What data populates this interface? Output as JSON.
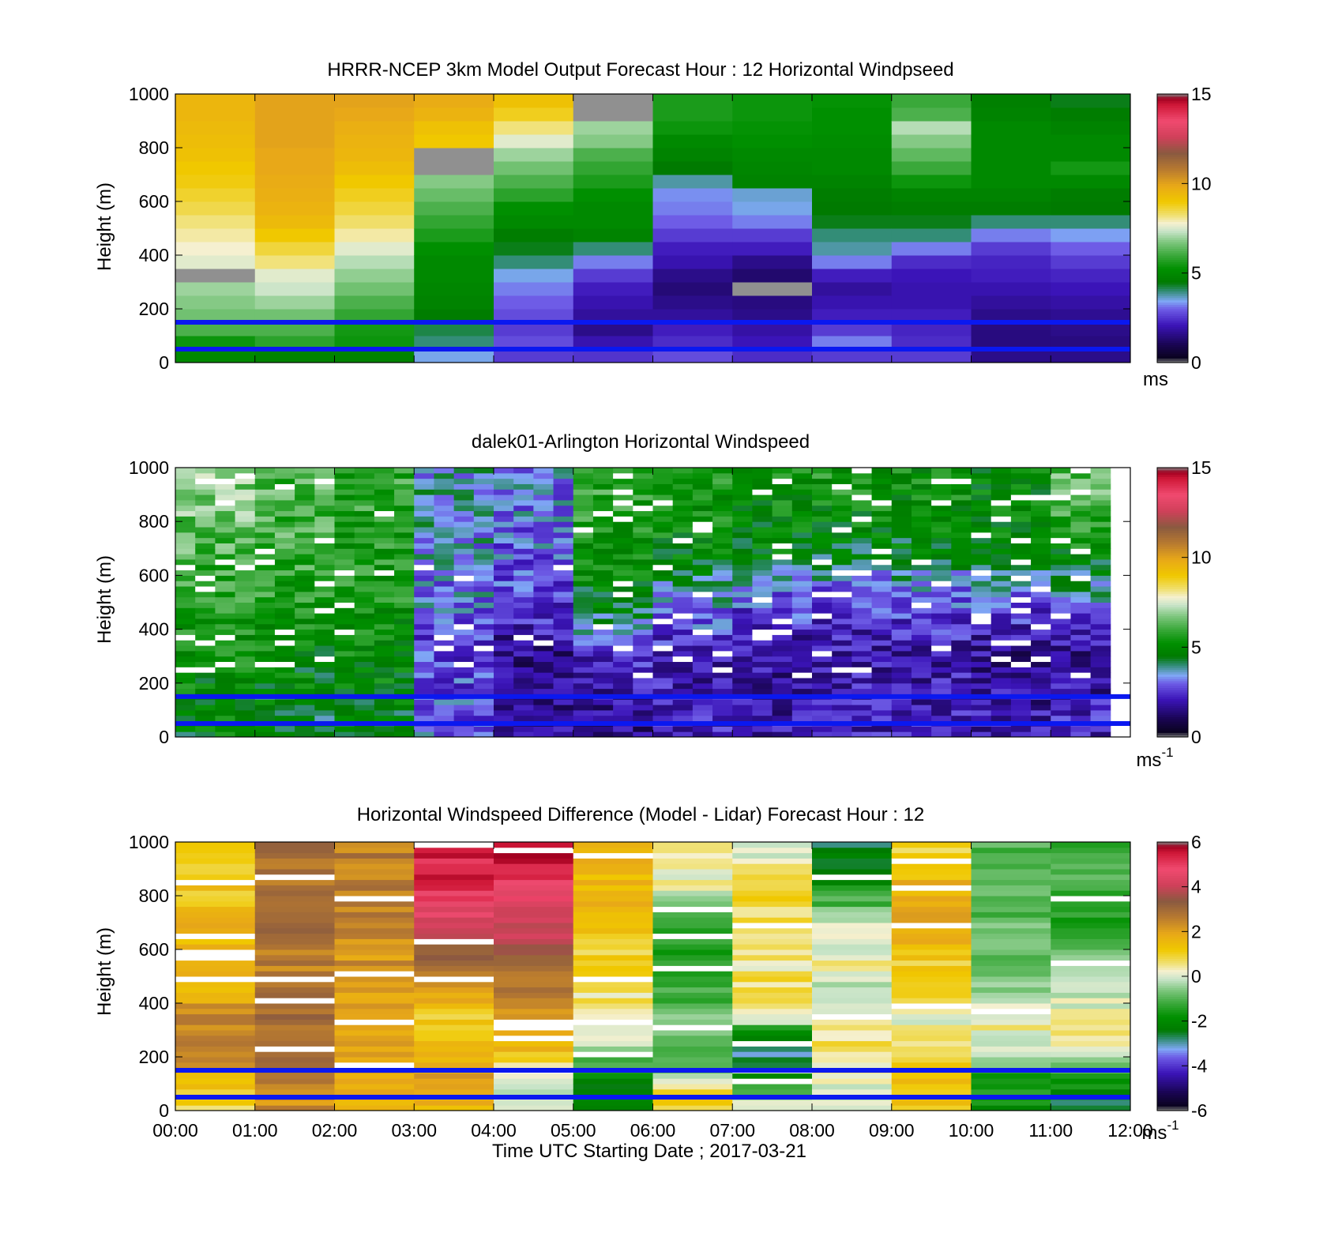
{
  "chart_data": [
    {
      "type": "heatmap",
      "title": "HRRR-NCEP 3km Model Output   Forecast Hour : 12 Horizontal Windpseed",
      "xlabel": "",
      "ylabel": "Height (m)",
      "xlim_hours": [
        0,
        12
      ],
      "ylim": [
        0,
        1000
      ],
      "yticks": [
        "0",
        "200",
        "400",
        "600",
        "800",
        "1000"
      ],
      "colorbar": {
        "ticks": [
          "0",
          "5",
          "10",
          "15"
        ],
        "range": [
          0,
          15
        ],
        "unit_label": "ms",
        "unit_sup": ""
      },
      "reference_lines_m": [
        50,
        150
      ],
      "heights_m": [
        25,
        75,
        125,
        175,
        225,
        275,
        325,
        375,
        425,
        475,
        525,
        575,
        625,
        675,
        725,
        775,
        825,
        875,
        925,
        975
      ],
      "columns": [
        {
          "time": "00:00",
          "values": [
            5,
            5.4,
            6.2,
            6.6,
            6.8,
            7.0,
            0.0,
            7.6,
            7.8,
            8.0,
            8.2,
            8.5,
            8.7,
            8.9,
            9.0,
            9.2,
            9.3,
            9.4,
            9.5,
            9.5
          ]
        },
        {
          "time": "01:00",
          "values": [
            4.8,
            5.8,
            6.2,
            6.6,
            7.0,
            7.4,
            7.6,
            8.2,
            8.6,
            9.0,
            9.4,
            9.6,
            9.7,
            9.8,
            9.9,
            9.9,
            10.0,
            10.0,
            10.0,
            10.0
          ]
        },
        {
          "time": "02:00",
          "values": [
            4.8,
            5.4,
            5.5,
            5.9,
            6.2,
            6.6,
            6.9,
            7.2,
            7.6,
            8.0,
            8.3,
            8.6,
            8.8,
            9.0,
            9.3,
            9.5,
            9.6,
            9.7,
            9.9,
            10.0
          ]
        },
        {
          "time": "03:00",
          "values": [
            3.5,
            4.0,
            4.2,
            4.6,
            4.8,
            4.9,
            5.0,
            5.0,
            5.2,
            5.6,
            5.9,
            6.2,
            6.5,
            6.8,
            0.0,
            0.0,
            9.0,
            9.2,
            9.6,
            9.8
          ]
        },
        {
          "time": "04:00",
          "values": [
            2.6,
            2.8,
            2.6,
            2.8,
            3.0,
            3.2,
            3.5,
            4.0,
            4.4,
            4.6,
            5.0,
            5.2,
            5.8,
            6.2,
            6.6,
            7.0,
            7.6,
            8.2,
            8.8,
            9.2
          ]
        },
        {
          "time": "05:00",
          "values": [
            2.5,
            2.0,
            1.6,
            1.8,
            2.0,
            2.2,
            2.6,
            3.2,
            4.0,
            4.8,
            5.0,
            5.0,
            5.2,
            5.6,
            5.9,
            6.2,
            6.8,
            7.0,
            0.0,
            0.0
          ]
        },
        {
          "time": "06:00",
          "values": [
            2.8,
            2.4,
            2.2,
            1.8,
            1.6,
            1.4,
            1.6,
            2.0,
            2.2,
            2.6,
            3.0,
            3.2,
            3.3,
            3.8,
            4.5,
            4.8,
            5.0,
            5.4,
            5.6,
            5.6
          ]
        },
        {
          "time": "07:00",
          "values": [
            2.4,
            2.1,
            1.9,
            1.6,
            1.5,
            0.0,
            1.3,
            1.6,
            2.2,
            2.6,
            3.2,
            3.5,
            3.6,
            4.8,
            4.9,
            5.0,
            5.2,
            5.3,
            5.4,
            5.4
          ]
        },
        {
          "time": "08:00",
          "values": [
            2.6,
            3.2,
            2.6,
            2.2,
            2.0,
            1.8,
            2.2,
            3.2,
            3.8,
            4.0,
            4.4,
            4.5,
            4.6,
            4.8,
            5.0,
            5.0,
            5.1,
            5.2,
            5.2,
            5.3
          ]
        },
        {
          "time": "09:00",
          "values": [
            2.6,
            2.4,
            2.3,
            2.2,
            2.0,
            2.0,
            2.1,
            2.4,
            3.2,
            4.0,
            4.4,
            4.6,
            4.8,
            5.4,
            6.0,
            6.4,
            6.8,
            7.2,
            6.2,
            6.0
          ]
        },
        {
          "time": "10:00",
          "values": [
            1.6,
            1.5,
            1.5,
            1.6,
            1.8,
            2.0,
            2.2,
            2.3,
            2.6,
            3.2,
            4.0,
            4.6,
            4.8,
            5.0,
            5.0,
            5.0,
            5.0,
            5.0,
            4.8,
            4.7
          ]
        },
        {
          "time": "11:00",
          "values": [
            1.6,
            1.5,
            1.6,
            1.7,
            1.9,
            2.1,
            2.3,
            2.6,
            3.0,
            3.4,
            4.0,
            4.5,
            4.6,
            5.0,
            5.5,
            5.0,
            5.0,
            4.8,
            4.6,
            4.4
          ]
        }
      ]
    },
    {
      "type": "heatmap",
      "title": "dalek01-Arlington  Horizontal Windspeed",
      "xlabel": "",
      "ylabel": "Height (m)",
      "xlim_hours": [
        0,
        12
      ],
      "ylim": [
        0,
        1000
      ],
      "yticks": [
        "0",
        "200",
        "400",
        "600",
        "800",
        "1000"
      ],
      "colorbar": {
        "ticks": [
          "0",
          "5",
          "10",
          "15"
        ],
        "range": [
          0,
          15
        ],
        "unit_label": "ms",
        "unit_sup": "-1"
      },
      "reference_lines_m": [
        50,
        150
      ],
      "profile_interval_min": 15,
      "heights_m": [
        100,
        300,
        500,
        700,
        900
      ],
      "mean_profiles": [
        {
          "time": "00:00",
          "values": [
            4.8,
            5.2,
            5.6,
            6.2,
            6.8
          ]
        },
        {
          "time": "01:00",
          "values": [
            4.5,
            5.0,
            5.6,
            6.0,
            6.2
          ]
        },
        {
          "time": "02:00",
          "values": [
            4.6,
            5.0,
            5.4,
            5.6,
            5.8
          ]
        },
        {
          "time": "03:00",
          "values": [
            3.0,
            2.6,
            3.2,
            3.4,
            3.6
          ]
        },
        {
          "time": "04:00",
          "values": [
            1.8,
            1.6,
            2.6,
            3.0,
            3.2
          ]
        },
        {
          "time": "05:00",
          "values": [
            1.6,
            2.4,
            4.6,
            5.4,
            5.8
          ]
        },
        {
          "time": "06:00",
          "values": [
            2.2,
            2.0,
            3.4,
            5.0,
            5.4
          ]
        },
        {
          "time": "07:00",
          "values": [
            2.0,
            1.8,
            2.8,
            4.8,
            5.2
          ]
        },
        {
          "time": "08:00",
          "values": [
            2.2,
            2.0,
            2.6,
            4.6,
            5.4
          ]
        },
        {
          "time": "09:00",
          "values": [
            2.2,
            2.0,
            2.8,
            4.6,
            5.2
          ]
        },
        {
          "time": "10:00",
          "values": [
            2.0,
            1.6,
            2.8,
            5.0,
            5.0
          ]
        },
        {
          "time": "11:00",
          "values": [
            2.2,
            1.4,
            3.4,
            5.2,
            6.2
          ]
        }
      ]
    },
    {
      "type": "heatmap",
      "title": "Horizontal Windspeed Difference (Model - Lidar) Forecast Hour : 12",
      "xlabel": "Time UTC  Starting Date ; 2017-03-21",
      "ylabel": "Height (m)",
      "xlim_hours": [
        0,
        12
      ],
      "ylim": [
        0,
        1000
      ],
      "xticks": [
        "00:00",
        "01:00",
        "02:00",
        "03:00",
        "04:00",
        "05:00",
        "06:00",
        "07:00",
        "08:00",
        "09:00",
        "10:00",
        "11:00",
        "12:00"
      ],
      "yticks": [
        "0",
        "200",
        "400",
        "600",
        "800",
        "1000"
      ],
      "colorbar": {
        "ticks": [
          "-6",
          "-4",
          "-2",
          "0",
          "2",
          "4",
          "6"
        ],
        "range": [
          -6,
          6
        ],
        "unit_label": "ms",
        "unit_sup": "-1"
      },
      "reference_lines_m": [
        50,
        150
      ],
      "heights_m": [
        50,
        150,
        250,
        350,
        450,
        550,
        650,
        750,
        850,
        950
      ],
      "mean_profiles": [
        {
          "time": "00:00",
          "values": [
            1.0,
            1.8,
            2.6,
            2.4,
            1.6,
            1.8,
            1.6,
            1.4,
            1.2,
            1.0
          ]
        },
        {
          "time": "01:00",
          "values": [
            2.4,
            3.0,
            3.0,
            3.0,
            2.6,
            2.6,
            2.8,
            2.8,
            2.8,
            2.8
          ]
        },
        {
          "time": "02:00",
          "values": [
            1.6,
            2.2,
            2.2,
            2.0,
            2.0,
            2.2,
            2.4,
            2.6,
            2.6,
            2.6
          ]
        },
        {
          "time": "03:00",
          "values": [
            1.6,
            2.0,
            1.2,
            1.0,
            2.0,
            3.0,
            3.8,
            4.6,
            5.2,
            5.4
          ]
        },
        {
          "time": "04:00",
          "values": [
            -0.2,
            0.4,
            1.8,
            2.4,
            2.6,
            3.0,
            3.8,
            4.4,
            5.0,
            5.4
          ]
        },
        {
          "time": "05:00",
          "values": [
            -2.4,
            -1.6,
            0.2,
            0.4,
            0.6,
            0.8,
            1.2,
            1.4,
            1.6,
            1.8
          ]
        },
        {
          "time": "06:00",
          "values": [
            1.2,
            -0.6,
            -1.0,
            -0.8,
            -1.2,
            -1.4,
            -1.2,
            -0.6,
            0.2,
            0.4
          ]
        },
        {
          "time": "07:00",
          "values": [
            -0.2,
            -2.6,
            -3.0,
            0.2,
            0.8,
            0.4,
            0.4,
            0.8,
            1.0,
            0.2
          ]
        },
        {
          "time": "08:00",
          "values": [
            0.0,
            0.2,
            0.6,
            0.4,
            -0.4,
            0.4,
            0.2,
            -0.8,
            -1.8,
            -2.4
          ]
        },
        {
          "time": "09:00",
          "values": [
            1.2,
            1.4,
            0.4,
            0.2,
            0.8,
            1.0,
            1.6,
            1.8,
            1.6,
            1.0
          ]
        },
        {
          "time": "10:00",
          "values": [
            -1.8,
            -1.2,
            0.2,
            0.4,
            -0.6,
            -0.8,
            -0.6,
            -1.2,
            -0.8,
            -1.0
          ]
        },
        {
          "time": "11:00",
          "values": [
            -2.4,
            -1.0,
            0.2,
            0.6,
            -0.4,
            -0.6,
            -1.2,
            -1.6,
            -1.0,
            -1.2
          ]
        }
      ]
    }
  ]
}
